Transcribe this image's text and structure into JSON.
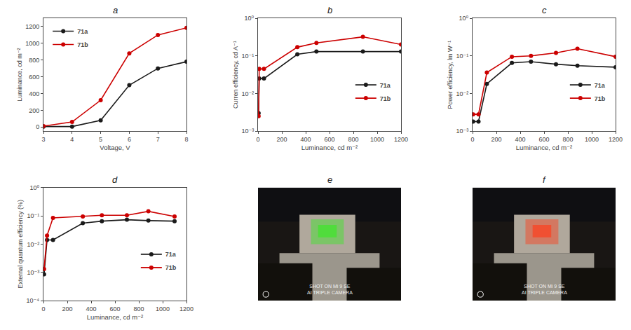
{
  "chart_data": [
    {
      "type": "line",
      "title": "a",
      "xlabel": "Voltage, V",
      "ylabel": "Luminance, cd m⁻²",
      "x": [
        3,
        4,
        5,
        6,
        7,
        8
      ],
      "series": [
        {
          "name": "71a",
          "color": "#1a1a1a",
          "marker": "circle",
          "line_style": "solid",
          "values": [
            5,
            5,
            80,
            500,
            700,
            780
          ]
        },
        {
          "name": "71b",
          "color": "#cc0000",
          "marker": "circle",
          "line_style": "solid",
          "values": [
            10,
            60,
            320,
            880,
            1100,
            1185
          ]
        }
      ],
      "xlim": [
        3,
        8
      ],
      "ylim": [
        -50,
        1300
      ],
      "xticks": [
        3,
        4,
        5,
        6,
        7,
        8
      ],
      "yticks": [
        0,
        200,
        400,
        600,
        800,
        1000,
        1200
      ],
      "grid": false,
      "legend": "upper left"
    },
    {
      "type": "line",
      "title": "b",
      "xlabel": "Luminance, cd m⁻²",
      "ylabel": "Curren efficiency, cd A⁻¹",
      "x": [
        5,
        10,
        50,
        330,
        490,
        880,
        1200
      ],
      "series": [
        {
          "name": "71a",
          "color": "#1a1a1a",
          "marker": "circle",
          "line_style": "solid",
          "values": [
            0.003,
            0.025,
            0.025,
            0.11,
            0.13,
            0.13,
            0.13
          ]
        },
        {
          "name": "71b",
          "color": "#cc0000",
          "marker": "circle",
          "line_style": "solid",
          "values": [
            0.0025,
            0.045,
            0.045,
            0.17,
            0.22,
            0.32,
            0.2
          ]
        }
      ],
      "xlim": [
        0,
        1200
      ],
      "ylim": [
        0.001,
        1.0
      ],
      "xticks": [
        0,
        200,
        400,
        600,
        800,
        1000,
        1200
      ],
      "yticks": [
        {
          "value": 0.001,
          "label": "10⁻³"
        },
        {
          "value": 0.01,
          "label": "10⁻²"
        },
        {
          "value": 0.1,
          "label": "10⁻¹"
        },
        {
          "value": 1,
          "label": "10⁰"
        }
      ],
      "log": "y",
      "grid": false,
      "legend": "center right"
    },
    {
      "type": "line",
      "title": "c",
      "xlabel": "Luminance, cd m⁻²",
      "ylabel": "Power efficiency, lm W⁻¹",
      "x": [
        5,
        50,
        120,
        330,
        490,
        700,
        880,
        1200
      ],
      "series": [
        {
          "name": "71a",
          "color": "#1a1a1a",
          "marker": "circle",
          "line_style": "solid",
          "values": [
            0.0018,
            0.0018,
            0.018,
            0.065,
            0.07,
            0.06,
            0.055,
            0.05
          ]
        },
        {
          "name": "71b",
          "color": "#cc0000",
          "marker": "circle",
          "line_style": "solid",
          "values": [
            0.0028,
            0.0028,
            0.036,
            0.095,
            0.1,
            0.12,
            0.155,
            0.095
          ]
        }
      ],
      "xlim": [
        0,
        1200
      ],
      "ylim": [
        0.001,
        1.0
      ],
      "xticks": [
        0,
        200,
        400,
        600,
        800,
        1000,
        1200
      ],
      "yticks": [
        {
          "value": 0.001,
          "label": "10⁻³"
        },
        {
          "value": 0.01,
          "label": "10⁻²"
        },
        {
          "value": 0.1,
          "label": "10⁻¹"
        },
        {
          "value": 1,
          "label": "10⁰"
        }
      ],
      "log": "y",
      "grid": false,
      "legend": "center right"
    },
    {
      "type": "line",
      "title": "d",
      "xlabel": "Luminance, cd m⁻²",
      "ylabel": "External quantum efficiency (%)",
      "x": [
        5,
        30,
        80,
        330,
        490,
        700,
        880,
        1100
      ],
      "series": [
        {
          "name": "71a",
          "color": "#1a1a1a",
          "marker": "circle",
          "line_style": "solid",
          "values": [
            0.00085,
            0.014,
            0.014,
            0.055,
            0.065,
            0.073,
            0.068,
            0.065
          ]
        },
        {
          "name": "71b",
          "color": "#cc0000",
          "marker": "circle",
          "line_style": "solid",
          "values": [
            0.0013,
            0.02,
            0.085,
            0.095,
            0.105,
            0.105,
            0.145,
            0.095
          ]
        }
      ],
      "xlim": [
        0,
        1200
      ],
      "ylim": [
        0.0001,
        1.0
      ],
      "xticks": [
        0,
        200,
        400,
        600,
        800,
        1000,
        1200
      ],
      "yticks": [
        {
          "value": 0.0001,
          "label": "10⁻⁴"
        },
        {
          "value": 0.001,
          "label": "10⁻³"
        },
        {
          "value": 0.01,
          "label": "10⁻²"
        },
        {
          "value": 0.1,
          "label": "10⁻¹"
        },
        {
          "value": 1,
          "label": "10⁰"
        }
      ],
      "log": "y",
      "grid": false,
      "legend": "center right"
    },
    {
      "type": "image",
      "title": "e",
      "color": "#50dc3c",
      "annotations": [
        "SHOT ON Mi 9 SE\nAI TRIPLE CAMERA"
      ],
      "tick_labels": false
    },
    {
      "type": "image",
      "title": "f",
      "color": "#f05032",
      "annotations": [
        "SHOT ON Mi 9 SE\nAI TRIPLE CAMERA"
      ],
      "tick_labels": false
    }
  ]
}
